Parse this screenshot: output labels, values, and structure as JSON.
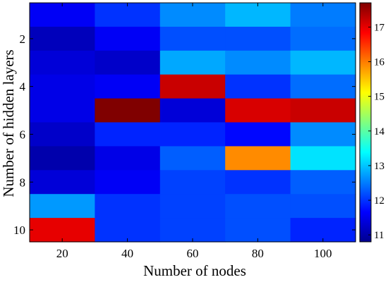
{
  "chart_data": {
    "type": "heatmap",
    "title": "",
    "xlabel": "Number of nodes",
    "ylabel": "Number of hidden layers",
    "x": [
      20,
      40,
      60,
      80,
      100
    ],
    "y": [
      1,
      2,
      3,
      4,
      5,
      6,
      7,
      8,
      9,
      10
    ],
    "x_tick_labels": [
      "20",
      "40",
      "60",
      "80",
      "100"
    ],
    "y_tick_values": [
      2,
      4,
      6,
      8,
      10
    ],
    "y_tick_labels": [
      "2",
      "4",
      "6",
      "8",
      "10"
    ],
    "values": [
      [
        11.6,
        12.0,
        12.6,
        12.9,
        12.5
      ],
      [
        11.2,
        11.6,
        12.2,
        12.2,
        12.4
      ],
      [
        11.4,
        11.3,
        12.8,
        12.6,
        12.9
      ],
      [
        11.5,
        11.6,
        17.2,
        12.0,
        12.4
      ],
      [
        11.5,
        17.7,
        11.4,
        17.1,
        17.2
      ],
      [
        11.3,
        11.9,
        11.9,
        11.7,
        12.6
      ],
      [
        11.1,
        11.5,
        12.3,
        15.9,
        13.2
      ],
      [
        11.4,
        11.6,
        12.1,
        12.0,
        12.3
      ],
      [
        12.7,
        12.0,
        12.1,
        12.2,
        12.2
      ],
      [
        17.0,
        12.0,
        12.1,
        12.2,
        11.9
      ]
    ],
    "colorbar": {
      "min": 10.8,
      "max": 17.7,
      "ticks": [
        11,
        12,
        13,
        14,
        15,
        16,
        17
      ],
      "colormap": "jet"
    }
  }
}
